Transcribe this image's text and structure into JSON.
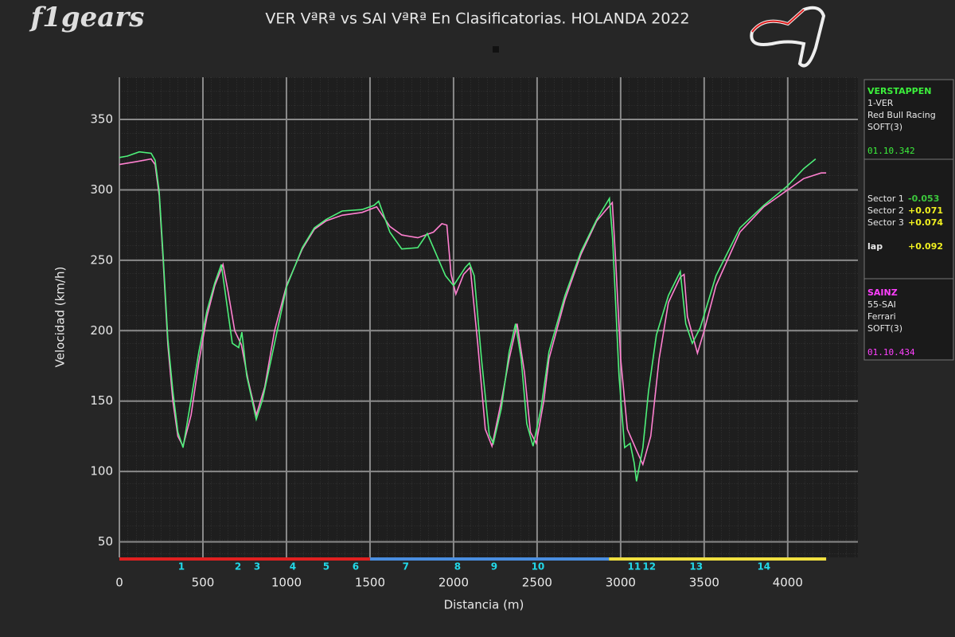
{
  "chart_data": {
    "type": "line",
    "title": "VER VªRª vs SAI VªRª En Clasificatorias. HOLANDA 2022",
    "logo": "f1gears",
    "x_label": "Distancia (m)",
    "y_label": "Velocidad (km/h)",
    "xlim": [
      0,
      4420
    ],
    "ylim": [
      39,
      380
    ],
    "xticks": [
      0,
      500,
      1000,
      1500,
      2000,
      2500,
      3000,
      3500,
      4000
    ],
    "yticks": [
      50,
      100,
      150,
      200,
      250,
      300,
      350
    ],
    "grid": true,
    "series": [
      {
        "name": "VER",
        "color": "#4ef07a",
        "x": [
          0,
          48,
          119,
          190,
          214,
          238,
          262,
          290,
          320,
          350,
          381,
          429,
          476,
          524,
          571,
          610,
          643,
          676,
          714,
          733,
          762,
          819,
          857,
          929,
          1000,
          1095,
          1167,
          1238,
          1333,
          1452,
          1524,
          1552,
          1619,
          1690,
          1786,
          1843,
          1952,
          2000,
          2071,
          2095,
          2124,
          2167,
          2214,
          2238,
          2286,
          2333,
          2371,
          2405,
          2438,
          2476,
          2524,
          2571,
          2667,
          2762,
          2857,
          2933,
          2952,
          2990,
          3024,
          3057,
          3081,
          3095,
          3133,
          3167,
          3214,
          3286,
          3357,
          3390,
          3429,
          3476,
          3571,
          3714,
          3857,
          4000,
          4095,
          4167
        ],
        "values": [
          323,
          324,
          327,
          326,
          321,
          299,
          253,
          194,
          157,
          128,
          117,
          151,
          185,
          214,
          234,
          247,
          219,
          191,
          188,
          199,
          168,
          137,
          151,
          191,
          231,
          259,
          273,
          279,
          285,
          286,
          289,
          292,
          270,
          258,
          259,
          269,
          239,
          232,
          245,
          248,
          239,
          180,
          126,
          120,
          145,
          185,
          205,
          180,
          134,
          118,
          145,
          185,
          225,
          256,
          279,
          294,
          265,
          168,
          117,
          120,
          106,
          93,
          117,
          157,
          197,
          225,
          242,
          205,
          191,
          202,
          239,
          273,
          289,
          303,
          315,
          322
        ]
      },
      {
        "name": "SAI",
        "color": "#ff80d0",
        "x": [
          0,
          100,
          190,
          214,
          238,
          262,
          290,
          320,
          350,
          381,
          429,
          476,
          524,
          571,
          620,
          650,
          690,
          730,
          770,
          819,
          870,
          929,
          1000,
          1095,
          1167,
          1238,
          1333,
          1452,
          1540,
          1619,
          1690,
          1786,
          1880,
          1930,
          1960,
          1985,
          2014,
          2060,
          2100,
          2145,
          2190,
          2230,
          2286,
          2333,
          2380,
          2425,
          2460,
          2495,
          2540,
          2571,
          2667,
          2762,
          2857,
          2950,
          2970,
          3000,
          3040,
          3095,
          3133,
          3180,
          3230,
          3286,
          3357,
          3380,
          3400,
          3460,
          3500,
          3571,
          3714,
          3857,
          4000,
          4095,
          4200,
          4230
        ],
        "values": [
          318,
          320,
          322,
          318,
          296,
          250,
          190,
          150,
          125,
          118,
          140,
          178,
          210,
          232,
          247,
          228,
          200,
          190,
          165,
          140,
          160,
          200,
          232,
          258,
          272,
          278,
          282,
          284,
          288,
          274,
          268,
          266,
          270,
          276,
          275,
          240,
          226,
          240,
          245,
          190,
          130,
          118,
          150,
          180,
          205,
          170,
          128,
          120,
          150,
          180,
          222,
          254,
          278,
          291,
          250,
          180,
          130,
          115,
          105,
          125,
          180,
          220,
          238,
          240,
          210,
          184,
          200,
          232,
          270,
          288,
          300,
          308,
          312,
          312
        ]
      }
    ],
    "sector_bars": [
      {
        "color": "#e02020",
        "x": [
          0,
          1500
        ]
      },
      {
        "color": "#4a8ee0",
        "x": [
          1500,
          2930
        ]
      },
      {
        "color": "#f0e040",
        "x": [
          2930,
          4230
        ]
      }
    ],
    "corners": {
      "labels": [
        "1",
        "2",
        "3",
        "4",
        "5",
        "6",
        "7",
        "8",
        "9",
        "10",
        "11",
        "12",
        "13",
        "14"
      ],
      "x": [
        371,
        710,
        824,
        1038,
        1238,
        1414,
        1714,
        2024,
        2243,
        2505,
        3081,
        3171,
        3452,
        3857
      ]
    }
  },
  "panel": {
    "drivers": [
      {
        "name": "VERSTAPPEN",
        "code": "1-VER",
        "team": "Red Bull Racing",
        "tyre": "SOFT(3)",
        "lap_time": "01.10.342",
        "color": "#3cf03c"
      },
      {
        "name": "SAINZ",
        "code": "55-SAI",
        "team": "Ferrari",
        "tyre": "SOFT(3)",
        "lap_time": "01.10.434",
        "color": "#ff40ff"
      }
    ],
    "sectors": [
      {
        "label": "Sector 1",
        "delta": "-0.053",
        "color": "#3cc83c"
      },
      {
        "label": "Sector 2",
        "delta": "+0.071",
        "color": "#f0f020"
      },
      {
        "label": "Sector 3",
        "delta": "+0.074",
        "color": "#f0f020"
      }
    ],
    "lap": {
      "label": "lap",
      "delta": "+0.092",
      "color": "#f0f020"
    }
  }
}
